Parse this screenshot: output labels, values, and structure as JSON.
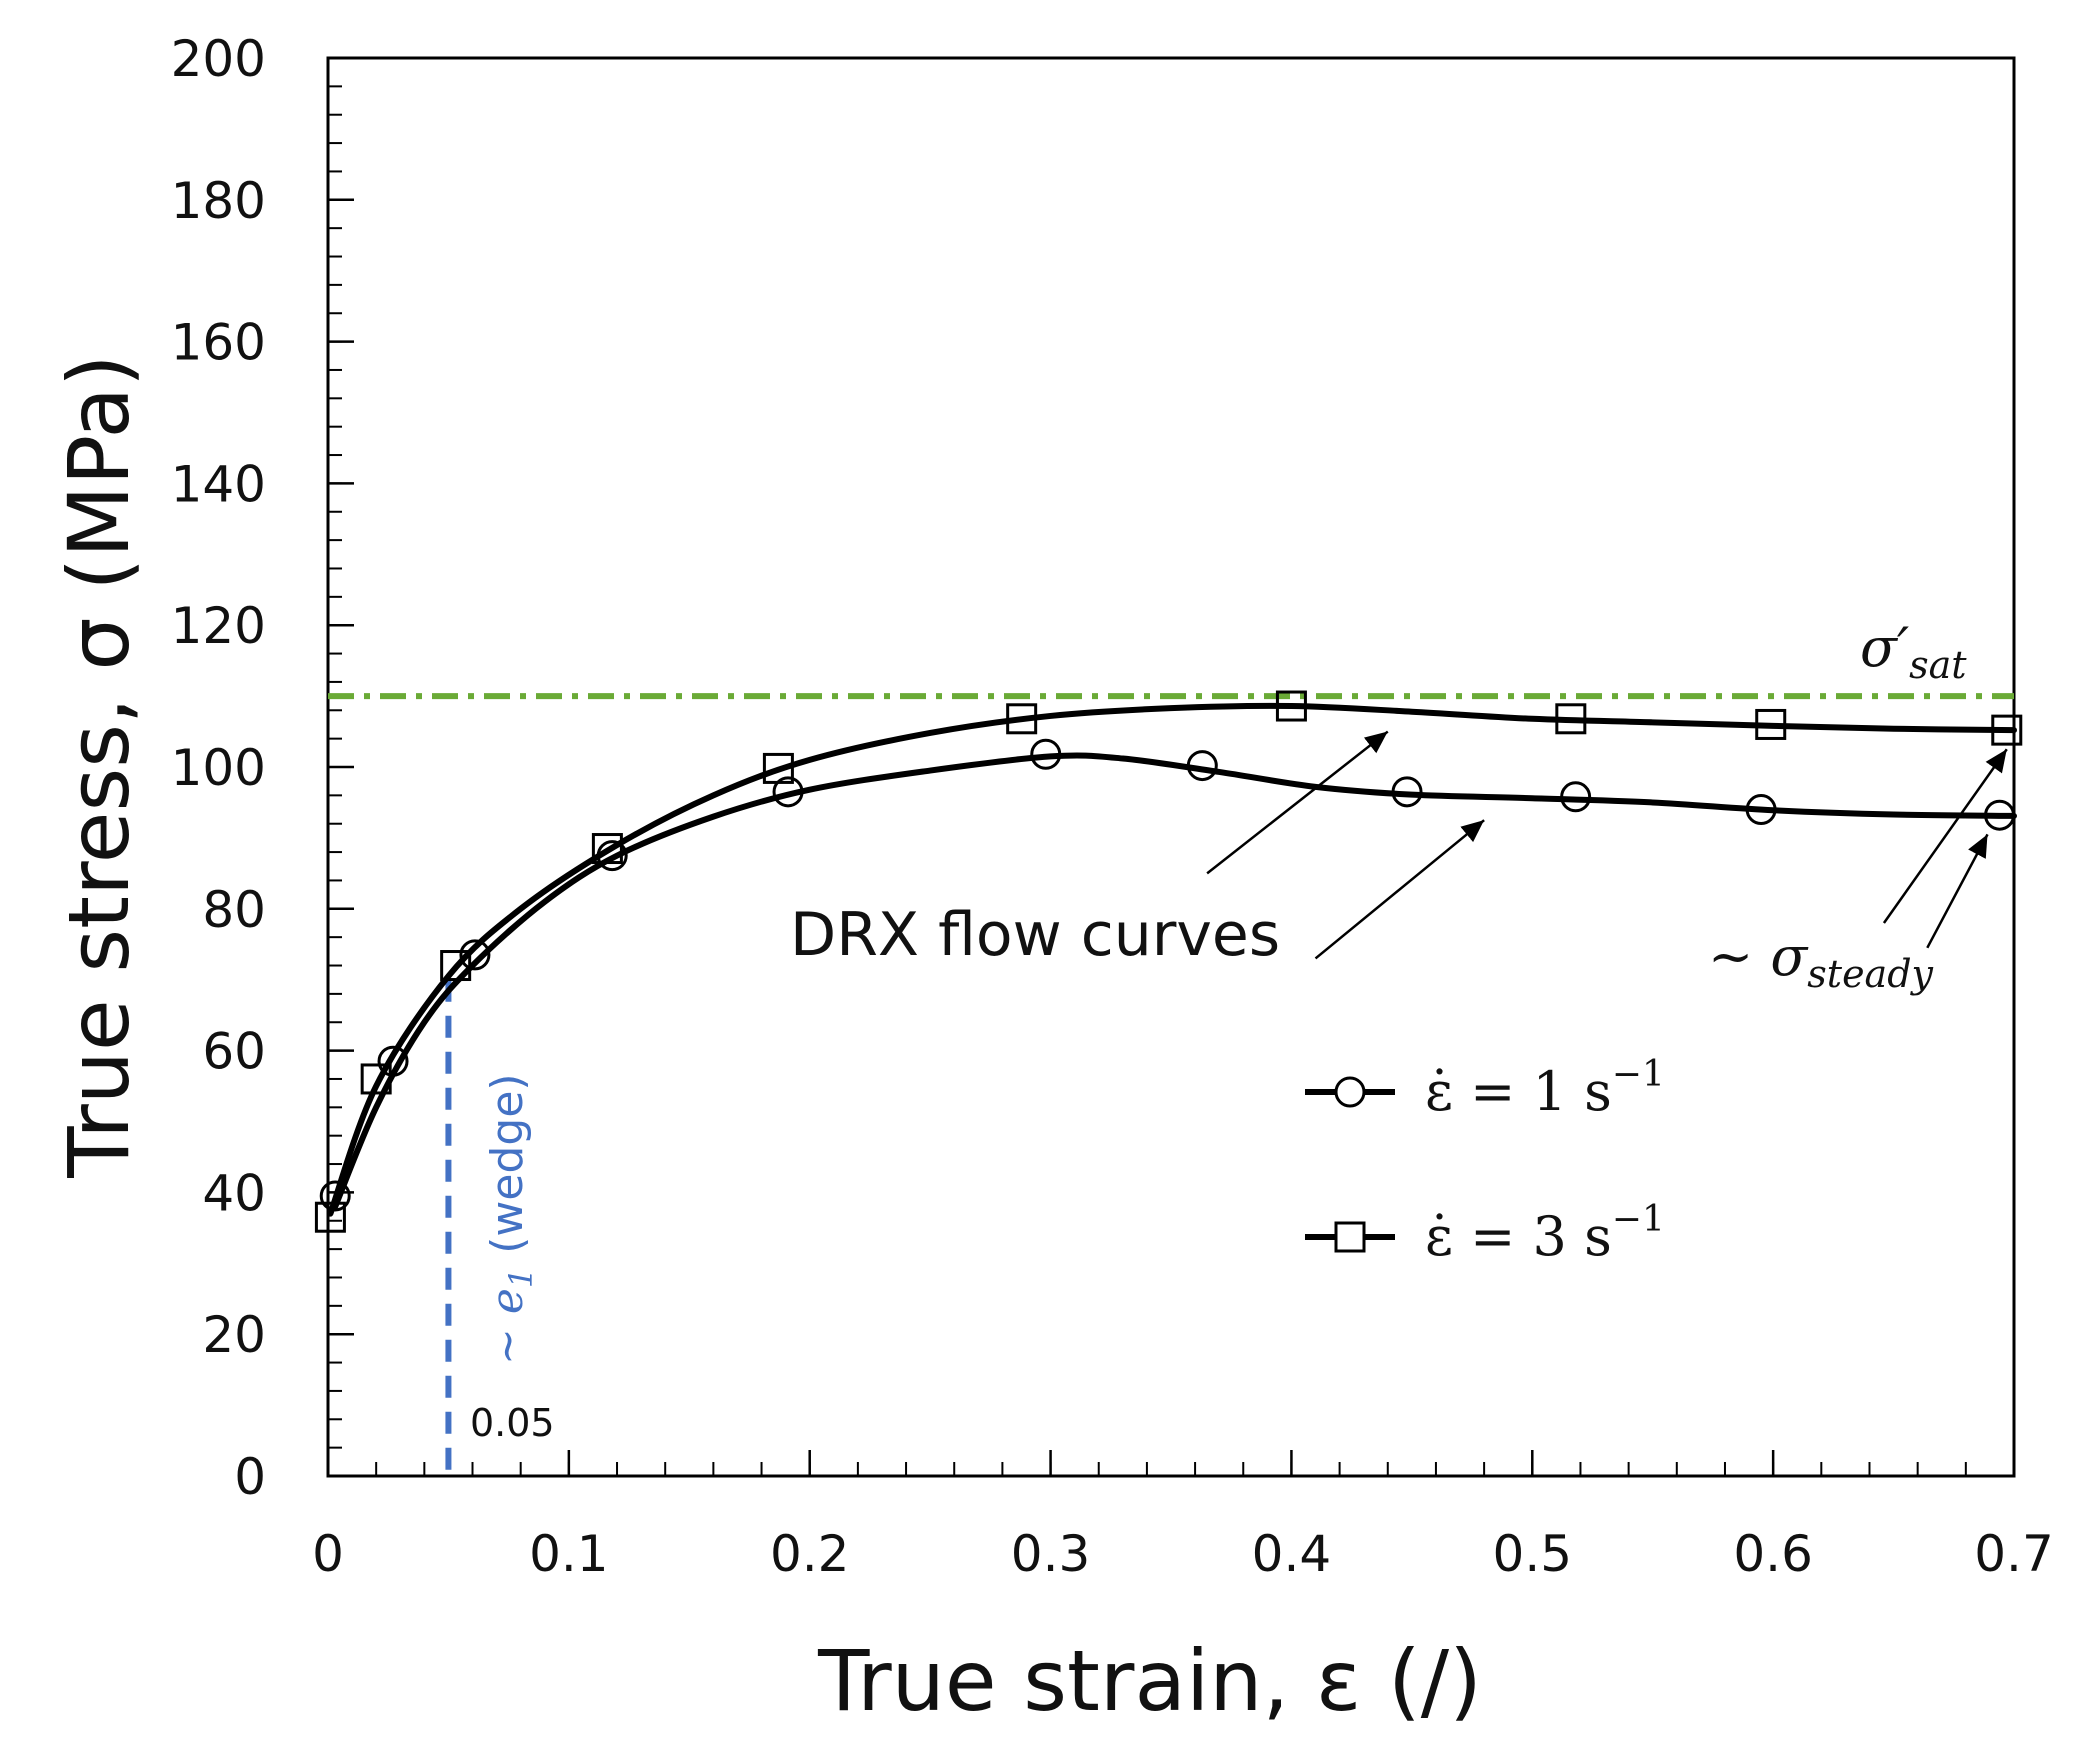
{
  "chart_data": {
    "type": "line",
    "xlabel": "True strain, ε (/)",
    "ylabel": "True stress, σ (MPa)",
    "xlim": [
      0,
      0.7
    ],
    "ylim": [
      0,
      200
    ],
    "x_ticks": [
      0,
      0.1,
      0.2,
      0.3,
      0.4,
      0.5,
      0.6,
      0.7
    ],
    "x_tick_labels": [
      "0",
      "0.1",
      "0.2",
      "0.3",
      "0.4",
      "0.5",
      "0.6",
      "0.7"
    ],
    "y_ticks": [
      0,
      20,
      40,
      60,
      80,
      100,
      120,
      140,
      160,
      180,
      200
    ],
    "y_tick_labels": [
      "0",
      "20",
      "40",
      "60",
      "80",
      "100",
      "120",
      "140",
      "160",
      "180",
      "200"
    ],
    "x_minor_step": 0.02,
    "y_minor_step": 4,
    "legend_position": "lower-right",
    "series": [
      {
        "name": "1 s⁻¹",
        "legend_label": "ε̇ = 1 s⁻¹",
        "marker": "circle",
        "color": "#000000",
        "markers": [
          [
            0.003,
            39.5
          ],
          [
            0.027,
            58.5
          ],
          [
            0.061,
            73.5
          ],
          [
            0.118,
            87.5
          ],
          [
            0.191,
            96.5
          ],
          [
            0.298,
            101.8
          ],
          [
            0.363,
            100.2
          ],
          [
            0.448,
            96.5
          ],
          [
            0.518,
            95.8
          ],
          [
            0.595,
            94
          ],
          [
            0.694,
            93.2
          ]
        ],
        "curve": [
          [
            0.003,
            38
          ],
          [
            0.02,
            52
          ],
          [
            0.04,
            64
          ],
          [
            0.06,
            72
          ],
          [
            0.09,
            81
          ],
          [
            0.12,
            87.5
          ],
          [
            0.16,
            93
          ],
          [
            0.2,
            96.8
          ],
          [
            0.25,
            99.5
          ],
          [
            0.3,
            101.5
          ],
          [
            0.33,
            101.2
          ],
          [
            0.37,
            99.3
          ],
          [
            0.41,
            97.2
          ],
          [
            0.45,
            96.1
          ],
          [
            0.5,
            95.6
          ],
          [
            0.55,
            95
          ],
          [
            0.6,
            93.9
          ],
          [
            0.65,
            93.3
          ],
          [
            0.7,
            93.1
          ]
        ]
      },
      {
        "name": "3 s⁻¹",
        "legend_label": "ε̇ = 3 s⁻¹",
        "marker": "square",
        "color": "#000000",
        "markers": [
          [
            0.001,
            36.5
          ],
          [
            0.02,
            56
          ],
          [
            0.053,
            72
          ],
          [
            0.116,
            88.5
          ],
          [
            0.187,
            99.8
          ],
          [
            0.288,
            106.8
          ],
          [
            0.4,
            108.6
          ],
          [
            0.516,
            106.8
          ],
          [
            0.599,
            106
          ],
          [
            0.697,
            105.2
          ]
        ],
        "curve": [
          [
            0.001,
            37
          ],
          [
            0.02,
            55
          ],
          [
            0.05,
            70.5
          ],
          [
            0.08,
            80
          ],
          [
            0.12,
            89
          ],
          [
            0.16,
            96
          ],
          [
            0.2,
            101
          ],
          [
            0.25,
            104.8
          ],
          [
            0.3,
            107.2
          ],
          [
            0.35,
            108.3
          ],
          [
            0.4,
            108.6
          ],
          [
            0.45,
            107.8
          ],
          [
            0.5,
            106.8
          ],
          [
            0.55,
            106.3
          ],
          [
            0.6,
            105.8
          ],
          [
            0.65,
            105.4
          ],
          [
            0.7,
            105.2
          ]
        ]
      }
    ],
    "reference_lines": {
      "sigma_sat": {
        "y": 110,
        "color": "#6aaa36",
        "label": "σ′sat",
        "label_base": "σ′",
        "label_sub": "sat"
      },
      "e1": {
        "x": 0.05,
        "color": "#4472c4",
        "label": "~ e1 (wedge)",
        "label_prefix": "~ ",
        "label_symbol": "e",
        "label_sub": "1",
        "label_suffix": " (wedge)",
        "value_label": "0.05"
      }
    },
    "annotations": {
      "drx_label": "DRX flow curves",
      "drx_arrows": [
        {
          "from": [
            0.365,
            85
          ],
          "to": [
            0.44,
            105
          ]
        },
        {
          "from": [
            0.41,
            73
          ],
          "to": [
            0.48,
            92.5
          ]
        }
      ],
      "steady_label": "~ σsteady",
      "steady_prefix": "~ ",
      "steady_symbol": "σ",
      "steady_sub": "steady",
      "steady_arrows": [
        {
          "from": [
            0.646,
            78
          ],
          "to": [
            0.697,
            102.5
          ]
        },
        {
          "from": [
            0.664,
            74.5
          ],
          "to": [
            0.689,
            90.5
          ]
        }
      ]
    },
    "legend": {
      "entries": [
        {
          "marker": "circle",
          "text_prefix": "ε̇ = 1 s",
          "text_sup": "−1"
        },
        {
          "marker": "square",
          "text_prefix": "ε̇ = 3 s",
          "text_sup": "−1"
        }
      ]
    }
  }
}
